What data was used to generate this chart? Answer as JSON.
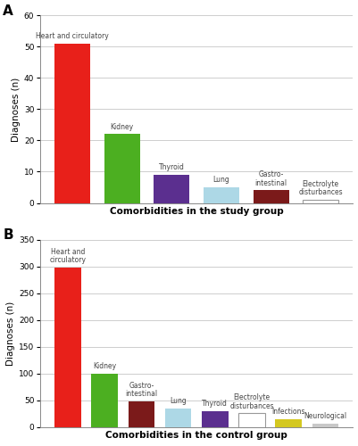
{
  "panel_A": {
    "labels": [
      "Heart and circulatory",
      "Kidney",
      "Thyroid",
      "Lung",
      "Gastro-\nintestinal",
      "Electrolyte\ndisturbances"
    ],
    "values": [
      51,
      22,
      9,
      5,
      4,
      1
    ],
    "colors": [
      "#e8201a",
      "#4caf21",
      "#5b2f8f",
      "#add8e6",
      "#7b1a1a",
      "#ffffff"
    ],
    "ylim": [
      0,
      60
    ],
    "yticks": [
      0,
      10,
      20,
      30,
      40,
      50,
      60
    ],
    "ylabel": "Diagnoses (n)",
    "xlabel": "Comorbidities in the study group",
    "panel_label": "A"
  },
  "panel_B": {
    "labels": [
      "Heart and\ncirculatory",
      "Kidney",
      "Gastro-\nintestinal",
      "Lung",
      "Thyroid",
      "Electrolyte\ndisturbances",
      "Infections",
      "Neurological"
    ],
    "values": [
      298,
      100,
      48,
      35,
      30,
      26,
      15,
      7
    ],
    "colors": [
      "#e8201a",
      "#4caf21",
      "#7b1a1a",
      "#add8e6",
      "#5b2f8f",
      "#ffffff",
      "#d4c820",
      "#c8c8c8"
    ],
    "ylim": [
      0,
      350
    ],
    "yticks": [
      0,
      50,
      100,
      150,
      200,
      250,
      300,
      350
    ],
    "ylabel": "Diagnoses (n)",
    "xlabel": "Comorbidities in the control group",
    "panel_label": "B"
  },
  "fig_width": 4.02,
  "fig_height": 5.0,
  "dpi": 100
}
